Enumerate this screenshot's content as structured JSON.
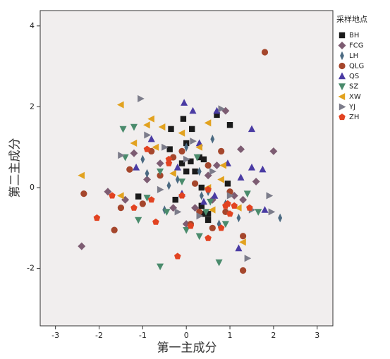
{
  "chart_data": {
    "type": "scatter",
    "x_label": "第一主成分",
    "y_label": "第二主成分",
    "legend_title": "采样地点",
    "xlim": [
      -3.35,
      3.36
    ],
    "ylim": [
      -3.42,
      4.38
    ],
    "xticks": [
      -3,
      -2,
      -1,
      0,
      1,
      2,
      3
    ],
    "yticks": [
      -2,
      0,
      2,
      4
    ],
    "background": "#f1eeee",
    "series": [
      {
        "name": "BH",
        "color": "#1a1a1a",
        "marker": "square",
        "x": [
          0.7,
          -0.07,
          1.0,
          0.13,
          -0.35,
          -0.38,
          0.0,
          0.1,
          -0.1,
          0.4,
          0.3,
          0.2,
          0.0,
          -1.1,
          0.95,
          0.35,
          0.4,
          0.5,
          0.5,
          0.35,
          -0.25
        ],
        "values": [
          1.8,
          1.7,
          1.55,
          1.45,
          1.45,
          0.95,
          1.1,
          0.65,
          0.6,
          0.7,
          0.75,
          0.4,
          0.4,
          -0.22,
          0.1,
          -0.45,
          -0.65,
          -0.8,
          -0.65,
          0.0,
          -0.3
        ]
      },
      {
        "name": "FCG",
        "color": "#7d5c72",
        "marker": "diamond",
        "x": [
          -2.4,
          -1.8,
          2.0,
          1.25,
          0.9,
          1.6,
          -1.2,
          -1.4,
          0.7,
          -0.6,
          0.2,
          1.1,
          -0.3,
          0.5,
          0.0,
          -0.9,
          0.6,
          1.3
        ],
        "values": [
          -1.45,
          -0.1,
          0.9,
          0.95,
          1.9,
          0.15,
          0.85,
          -0.3,
          0.55,
          0.6,
          -0.5,
          -0.2,
          -0.5,
          0.3,
          -0.9,
          0.2,
          -0.3,
          -0.3
        ]
      },
      {
        "name": "LH",
        "color": "#4b6a82",
        "marker": "thin-diamond",
        "x": [
          2.15,
          1.2,
          -0.9,
          0.3,
          0.5,
          -0.5,
          0.0,
          0.9,
          -0.2,
          0.35,
          -1.0,
          0.75,
          -0.4,
          0.6
        ],
        "values": [
          -0.75,
          -0.75,
          0.35,
          0.4,
          -0.1,
          -0.55,
          1.0,
          -0.4,
          0.2,
          -0.2,
          0.7,
          -0.9,
          0.05,
          1.2
        ]
      },
      {
        "name": "QLG",
        "color": "#a5462c",
        "marker": "circle",
        "x": [
          1.8,
          -2.35,
          -1.65,
          1.3,
          1.3,
          -1.5,
          -1.0,
          -0.8,
          0.1,
          0.5,
          -0.3,
          0.9,
          0.3,
          -0.6,
          0.8,
          1.0,
          -1.3,
          0.6,
          0.2,
          -0.1
        ],
        "values": [
          3.35,
          -0.15,
          -1.05,
          -2.05,
          -1.2,
          -0.5,
          -0.4,
          0.9,
          -0.9,
          0.55,
          0.75,
          -0.6,
          -0.6,
          0.3,
          0.9,
          -0.1,
          0.45,
          -1.0,
          0.1,
          0.9
        ]
      },
      {
        "name": "QS",
        "color": "#4a3ba3",
        "marker": "triangle-up",
        "x": [
          -0.05,
          1.5,
          1.75,
          1.8,
          1.2,
          0.3,
          -0.8,
          0.65,
          -0.2,
          1.5,
          0.95,
          0.15,
          -1.15,
          -0.1,
          0.4,
          0.7,
          1.25
        ],
        "values": [
          2.1,
          1.45,
          0.45,
          -0.55,
          -1.5,
          1.1,
          1.2,
          -0.2,
          0.5,
          0.5,
          0.6,
          1.9,
          0.5,
          -0.15,
          -0.35,
          1.9,
          0.25
        ]
      },
      {
        "name": "SZ",
        "color": "#4a8b6c",
        "marker": "triangle-down",
        "x": [
          -1.45,
          -0.6,
          0.75,
          0.0,
          -1.4,
          1.65,
          -0.45,
          0.55,
          -1.1,
          0.25,
          0.9,
          -0.6,
          0.3,
          -0.1,
          1.4,
          -0.9,
          -1.2,
          0.45
        ],
        "values": [
          1.45,
          -1.95,
          -1.85,
          -1.05,
          0.75,
          -0.6,
          -0.6,
          -0.35,
          -0.8,
          0.75,
          -0.9,
          0.4,
          -1.2,
          0.15,
          -0.15,
          -0.25,
          1.5,
          -0.6
        ]
      },
      {
        "name": "XW",
        "color": "#e2a21f",
        "marker": "triangle-left",
        "x": [
          -1.5,
          -2.4,
          -0.8,
          -0.55,
          1.3,
          -1.2,
          0.5,
          -0.1,
          0.85,
          0.3,
          -0.9,
          0.5,
          1.2,
          -0.3,
          -1.5,
          0.6,
          -0.7,
          0.8
        ],
        "values": [
          2.05,
          0.3,
          1.7,
          1.5,
          -1.35,
          1.1,
          1.6,
          1.35,
          0.55,
          1.0,
          1.55,
          0.0,
          -0.5,
          0.35,
          -0.2,
          -0.55,
          1.0,
          0.2
        ]
      },
      {
        "name": "YJ",
        "color": "#7c7c8a",
        "marker": "triangle-right",
        "x": [
          -1.05,
          1.9,
          1.95,
          1.4,
          1.5,
          0.8,
          -0.5,
          -0.9,
          0.15,
          -1.5,
          0.6,
          -0.2,
          1.0,
          0.3,
          -0.6,
          0.0
        ],
        "values": [
          2.2,
          -0.2,
          -0.6,
          -1.75,
          -0.55,
          1.95,
          1.0,
          1.3,
          1.15,
          0.8,
          0.4,
          -0.6,
          -0.2,
          -0.7,
          -0.05,
          0.7
        ]
      },
      {
        "name": "ZH",
        "color": "#e24321",
        "marker": "pentagon",
        "x": [
          -0.2,
          -2.05,
          -1.7,
          -1.2,
          1.0,
          -0.7,
          -0.1,
          0.5,
          -0.4,
          0.8,
          0.95,
          1.1,
          1.45,
          -0.8,
          0.5,
          0.1,
          -0.4,
          -0.9,
          0.9
        ],
        "values": [
          -1.7,
          -0.75,
          -0.2,
          -0.5,
          -0.65,
          -0.85,
          -0.2,
          -0.05,
          0.7,
          -1.0,
          -0.4,
          -0.45,
          -0.5,
          -0.3,
          -1.25,
          -0.95,
          0.6,
          0.95,
          -0.45
        ]
      }
    ]
  }
}
